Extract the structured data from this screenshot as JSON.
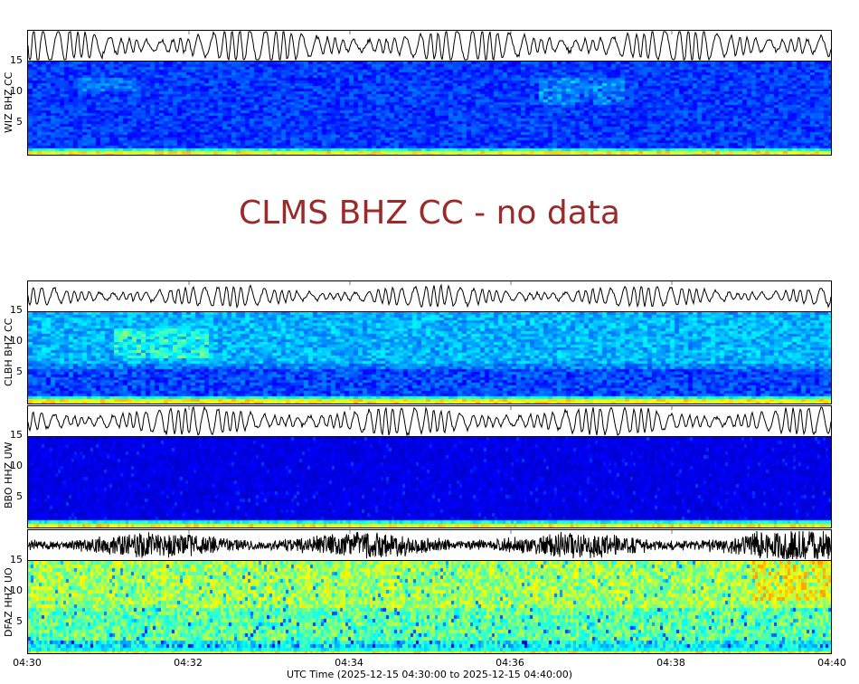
{
  "chart_data": {
    "type": "heatmap",
    "title": "",
    "xlabel": "UTC Time (2025-12-15 04:30:00 to 2025-12-15 04:40:00)",
    "x_ticks": [
      "04:30",
      "04:32",
      "04:34",
      "04:36",
      "04:38",
      "04:40"
    ],
    "xlim": [
      "2025-12-15 04:30:00",
      "2025-12-15 04:40:00"
    ],
    "y_ticks": [
      5,
      10,
      15
    ],
    "ylim": [
      0,
      15
    ],
    "ylabel_units": "Hz",
    "colormap": "jet",
    "panels": [
      {
        "station": "WIZ BHZ CC",
        "has_data": true,
        "dominant_colors": [
          "#00008b",
          "#0000ff",
          "#00ffff"
        ],
        "notes": "Mostly dark blue, energy bands near 0-1 Hz (cyan/yellow), faint energy ~10-12 Hz around 04:36-04:38"
      },
      {
        "station": "CLBH BHZ CC",
        "has_data": true,
        "dominant_colors": [
          "#0000cc",
          "#1e90ff",
          "#00ffff"
        ],
        "notes": "Blue with cyan patch around 04:31-04:32 at ~8-12 Hz"
      },
      {
        "station": "BBO HHZ UW",
        "has_data": true,
        "dominant_colors": [
          "#00008b",
          "#0000ff"
        ],
        "notes": "Very dark blue, cyan/yellow band near 0-1 Hz"
      },
      {
        "station": "DFAZ HHZ UO",
        "has_data": true,
        "dominant_colors": [
          "#00ffff",
          "#7fff7f",
          "#ffff00"
        ],
        "notes": "High energy, green/cyan/yellow throughout, yellow near 04:39 at 10-15 Hz"
      }
    ],
    "no_data_stations": [
      "CLMS BHZ CC"
    ]
  },
  "panels": {
    "wiz": {
      "label": "WIZ BHZ CC"
    },
    "clbh": {
      "label": "CLBH BHZ CC"
    },
    "bbo": {
      "label": "BBO HHZ UW"
    },
    "dfaz": {
      "label": "DFAZ HHZ UO"
    }
  },
  "nodata": {
    "message": "CLMS BHZ CC - no data"
  },
  "yticks": {
    "t15": "15",
    "t10": "10",
    "t5": "5"
  },
  "xticks": [
    "04:30",
    "04:32",
    "04:34",
    "04:36",
    "04:38",
    "04:40"
  ],
  "xaxis": {
    "label": "UTC Time (2025-12-15 04:30:00 to 2025-12-15 04:40:00)"
  },
  "colors": {
    "nodata_text": "#9b2a2a"
  }
}
